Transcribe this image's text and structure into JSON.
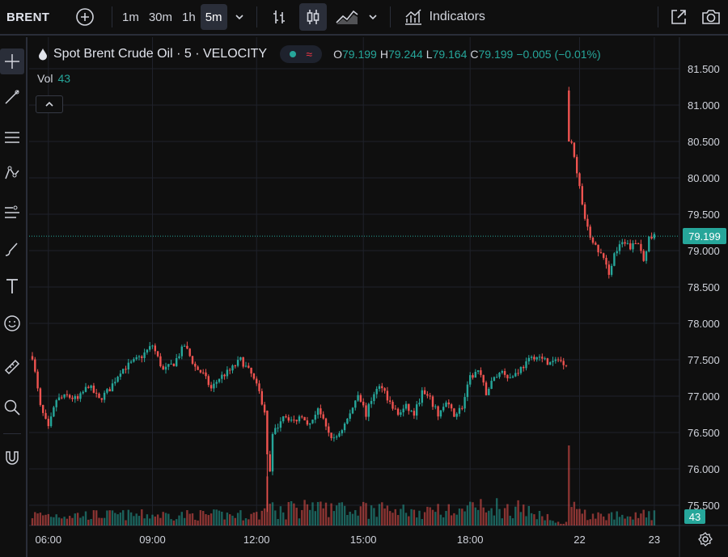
{
  "toolbar": {
    "symbol": "BRENT",
    "intervals": [
      "1m",
      "30m",
      "1h",
      "5m"
    ],
    "active_interval": "5m",
    "indicators_label": "Indicators"
  },
  "legend": {
    "title": "Spot Brent Crude Oil · 5 · VELOCITY",
    "ohlc": {
      "o_label": "O",
      "o": "79.199",
      "h_label": "H",
      "h": "79.244",
      "l_label": "L",
      "l": "79.164",
      "c_label": "C",
      "c": "79.199",
      "change": "−0.005 (−0.01%)"
    },
    "vol_label": "Vol",
    "vol_value": "43"
  },
  "colors": {
    "up": "#26a69a",
    "down": "#ef5350",
    "bg": "#0f0f0f",
    "grid": "#1f222b"
  },
  "chart_data": {
    "type": "candlestick",
    "y_ticks": [
      "81.500",
      "81.000",
      "80.500",
      "80.000",
      "79.500",
      "79.000",
      "78.500",
      "78.000",
      "77.500",
      "77.000",
      "76.500",
      "76.000",
      "75.500"
    ],
    "x_ticks": [
      "06:00",
      "09:00",
      "12:00",
      "15:00",
      "18:00",
      "22",
      "23"
    ],
    "ylim": [
      75.25,
      81.75
    ],
    "last_price": "79.199",
    "last_volume": "43",
    "price_path": [
      [
        0,
        77.55
      ],
      [
        3,
        76.85
      ],
      [
        6,
        76.55
      ],
      [
        9,
        76.95
      ],
      [
        13,
        77.0
      ],
      [
        17,
        76.95
      ],
      [
        21,
        77.15
      ],
      [
        25,
        76.95
      ],
      [
        29,
        77.1
      ],
      [
        33,
        77.35
      ],
      [
        37,
        77.45
      ],
      [
        41,
        77.55
      ],
      [
        45,
        77.7
      ],
      [
        49,
        77.35
      ],
      [
        53,
        77.45
      ],
      [
        57,
        77.7
      ],
      [
        61,
        77.4
      ],
      [
        64,
        77.3
      ],
      [
        67,
        77.1
      ],
      [
        70,
        77.25
      ],
      [
        74,
        77.35
      ],
      [
        78,
        77.5
      ],
      [
        82,
        77.3
      ],
      [
        85,
        77.05
      ],
      [
        87,
        76.8
      ],
      [
        88,
        75.45
      ],
      [
        90,
        76.45
      ],
      [
        94,
        76.75
      ],
      [
        98,
        76.65
      ],
      [
        101,
        76.75
      ],
      [
        104,
        76.6
      ],
      [
        107,
        76.85
      ],
      [
        110,
        76.55
      ],
      [
        113,
        76.4
      ],
      [
        116,
        76.55
      ],
      [
        119,
        76.75
      ],
      [
        122,
        77.05
      ],
      [
        125,
        76.75
      ],
      [
        128,
        77.05
      ],
      [
        131,
        77.15
      ],
      [
        134,
        76.9
      ],
      [
        137,
        76.75
      ],
      [
        140,
        76.85
      ],
      [
        143,
        76.75
      ],
      [
        146,
        77.05
      ],
      [
        149,
        76.95
      ],
      [
        152,
        76.75
      ],
      [
        155,
        76.9
      ],
      [
        158,
        76.75
      ],
      [
        161,
        76.85
      ],
      [
        164,
        77.25
      ],
      [
        167,
        77.35
      ],
      [
        170,
        77.05
      ],
      [
        173,
        77.25
      ],
      [
        176,
        77.35
      ],
      [
        179,
        77.25
      ],
      [
        182,
        77.35
      ],
      [
        185,
        77.45
      ],
      [
        188,
        77.55
      ],
      [
        191,
        77.5
      ],
      [
        194,
        77.45
      ],
      [
        197,
        77.5
      ],
      [
        200,
        77.45
      ],
      [
        201,
        81.2
      ],
      [
        202,
        80.45
      ],
      [
        204,
        80.1
      ],
      [
        206,
        79.6
      ],
      [
        208,
        79.3
      ],
      [
        210,
        79.1
      ],
      [
        213,
        78.95
      ],
      [
        216,
        78.7
      ],
      [
        218,
        78.95
      ],
      [
        221,
        79.1
      ],
      [
        224,
        79.05
      ],
      [
        227,
        79.1
      ],
      [
        229,
        78.9
      ],
      [
        231,
        79.15
      ],
      [
        233,
        79.2
      ]
    ]
  }
}
